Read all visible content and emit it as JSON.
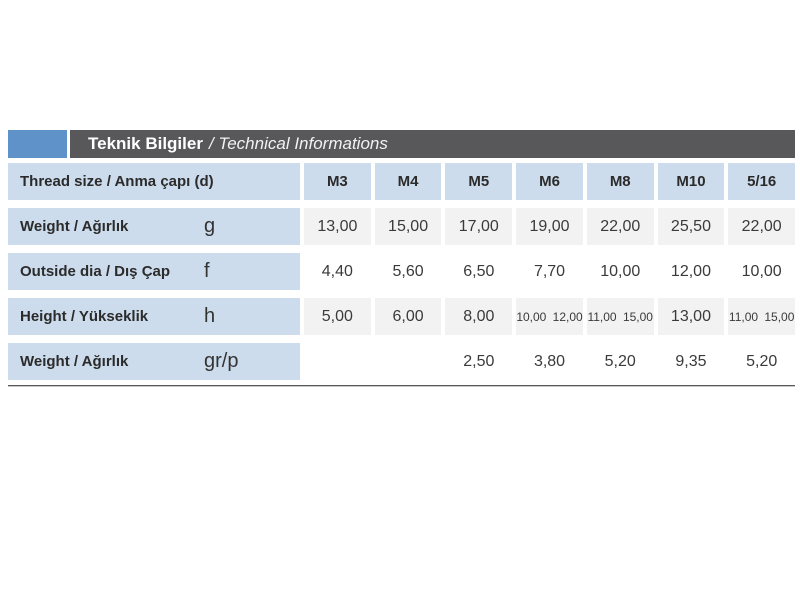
{
  "header": {
    "title_bold": "Teknik Bilgiler",
    "title_italic": "/ Technical Informations"
  },
  "table": {
    "header_row": {
      "label": "Thread size / Anma çapı (d)",
      "columns": [
        "M3",
        "M4",
        "M5",
        "M6",
        "M8",
        "M10",
        "5/16"
      ]
    },
    "rows": [
      {
        "label": "Weight / Ağırlık",
        "symbol": "g",
        "values": [
          "13,00",
          "15,00",
          "17,00",
          "19,00",
          "22,00",
          "25,50",
          "22,00"
        ]
      },
      {
        "label": "Outside dia / Dış Çap",
        "symbol": "f",
        "values": [
          "4,40",
          "5,60",
          "6,50",
          "7,70",
          "10,00",
          "12,00",
          "10,00"
        ]
      },
      {
        "label": "Height / Yükseklik",
        "symbol": "h",
        "values": [
          "5,00",
          "6,00",
          "8,00",
          "10,00 12,00",
          "11,00 15,00",
          "13,00",
          "11,00 15,00"
        ]
      },
      {
        "label": "Weight / Ağırlık",
        "symbol": "gr/p",
        "values": [
          "",
          "",
          "2,50",
          "3,80",
          "5,20",
          "9,35",
          "5,20"
        ]
      }
    ]
  },
  "colors": {
    "accent_blue": "#5e92c8",
    "title_strip": "#58585a",
    "label_cell_blue": "#cddcec",
    "shaded_cell_gray": "#f2f2f2",
    "text": "#2b2b2b"
  }
}
